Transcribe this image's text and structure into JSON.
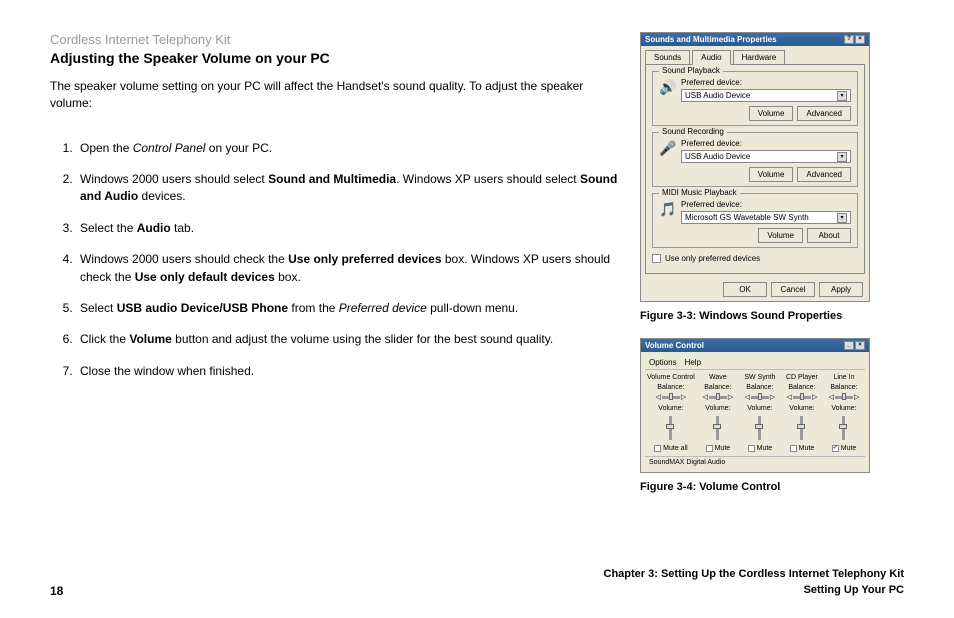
{
  "header": {
    "product": "Cordless Internet Telephony Kit",
    "section": "Adjusting the Speaker Volume on your PC"
  },
  "intro": "The speaker volume setting on your PC will affect the Handset's sound quality. To adjust the speaker volume:",
  "steps": {
    "s1a": "Open the ",
    "s1b": "Control Panel",
    "s1c": " on your PC.",
    "s2a": "Windows 2000 users should select ",
    "s2b": "Sound and Multimedia",
    "s2c": ". Windows XP users should select ",
    "s2d": "Sound and Audio",
    "s2e": " devices.",
    "s3a": "Select the ",
    "s3b": "Audio",
    "s3c": " tab.",
    "s4a": "Windows 2000 users should check the ",
    "s4b": "Use only preferred devices",
    "s4c": " box. Windows XP users should check the ",
    "s4d": "Use only default devices",
    "s4e": " box.",
    "s5a": "Select ",
    "s5b": "USB audio Device/USB Phone",
    "s5c": " from the ",
    "s5d": "Preferred device",
    "s5e": " pull-down menu.",
    "s6a": "Click the ",
    "s6b": "Volume",
    "s6c": " button and adjust the volume using the slider for the best sound quality.",
    "s7": "Close the window when finished."
  },
  "dialog1": {
    "title": "Sounds and Multimedia Properties",
    "tabs": {
      "sounds": "Sounds",
      "audio": "Audio",
      "hardware": "Hardware"
    },
    "playback": {
      "group": "Sound Playback",
      "label": "Preferred device:",
      "value": "USB Audio Device",
      "btn1": "Volume",
      "btn2": "Advanced"
    },
    "recording": {
      "group": "Sound Recording",
      "label": "Preferred device:",
      "value": "USB Audio Device",
      "btn1": "Volume",
      "btn2": "Advanced"
    },
    "midi": {
      "group": "MIDI Music Playback",
      "label": "Preferred device:",
      "value": "Microsoft GS Wavetable SW Synth",
      "btn1": "Volume",
      "btn2": "About"
    },
    "checkbox": "Use only preferred devices",
    "ok": "OK",
    "cancel": "Cancel",
    "apply": "Apply"
  },
  "fig1": "Figure 3-3: Windows Sound Properties",
  "dialog2": {
    "title": "Volume Control",
    "menu": {
      "options": "Options",
      "help": "Help"
    },
    "cols": [
      {
        "name": "Volume Control",
        "mute": "Mute all",
        "checked": false
      },
      {
        "name": "Wave",
        "mute": "Mute",
        "checked": false
      },
      {
        "name": "SW Synth",
        "mute": "Mute",
        "checked": false
      },
      {
        "name": "CD Player",
        "mute": "Mute",
        "checked": false
      },
      {
        "name": "Line In",
        "mute": "Mute",
        "checked": true
      }
    ],
    "balance": "Balance:",
    "volume": "Volume:",
    "status": "SoundMAX Digital Audio"
  },
  "fig2": "Figure 3-4: Volume Control",
  "footer": {
    "page": "18",
    "chapter": "Chapter 3: Setting Up the Cordless Internet Telephony Kit",
    "sub": "Setting Up Your PC"
  }
}
